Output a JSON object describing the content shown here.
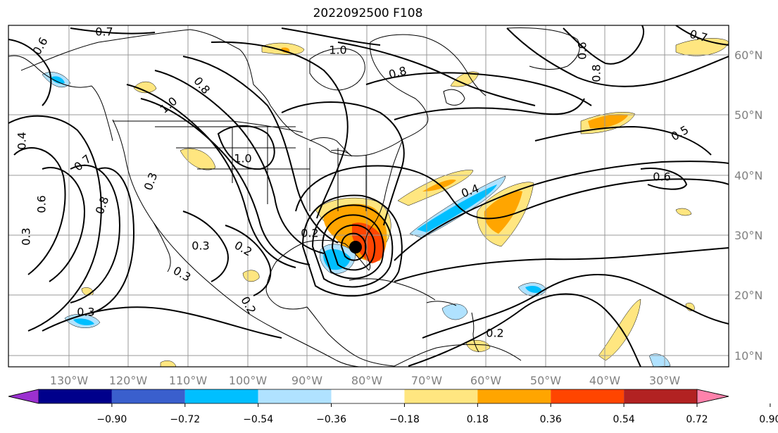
{
  "title": "2022092500 F108",
  "map": {
    "lon_ticks": [
      "130°W",
      "120°W",
      "110°W",
      "100°W",
      "90°W",
      "80°W",
      "70°W",
      "60°W",
      "50°W",
      "40°W",
      "30°W"
    ],
    "lat_ticks": [
      "60°N",
      "50°N",
      "40°N",
      "30°N",
      "20°N",
      "10°N"
    ],
    "gridlines": true,
    "contour_labels": [
      "0.7",
      "0.6",
      "1.0",
      "0.8",
      "0.8",
      "1.0",
      "1.0",
      "0.4",
      "0.7",
      "0.8",
      "0.6",
      "0.3",
      "0.3",
      "0.2",
      "0.3",
      "0.3",
      "0.2",
      "0.4",
      "0.5",
      "0.6",
      "0.2",
      "0.7",
      "0.6",
      "0.8",
      "0.3",
      "0.2"
    ],
    "storm_marker": "storm-center"
  },
  "colorbar": {
    "ticks": [
      "−0.90",
      "−0.72",
      "−0.54",
      "−0.36",
      "−0.18",
      "0.18",
      "0.36",
      "0.54",
      "0.72",
      "0.90"
    ],
    "colors": [
      "#9b30d0",
      "#00008b",
      "#3a5fcd",
      "#00bfff",
      "#b0e2ff",
      "#ffffff",
      "#ffe680",
      "#ffa500",
      "#ff4500",
      "#b22222",
      "#ff82ab"
    ]
  },
  "colors": {
    "land_outline": "#000000",
    "grid": "#999999",
    "tick_text": "#808080"
  }
}
